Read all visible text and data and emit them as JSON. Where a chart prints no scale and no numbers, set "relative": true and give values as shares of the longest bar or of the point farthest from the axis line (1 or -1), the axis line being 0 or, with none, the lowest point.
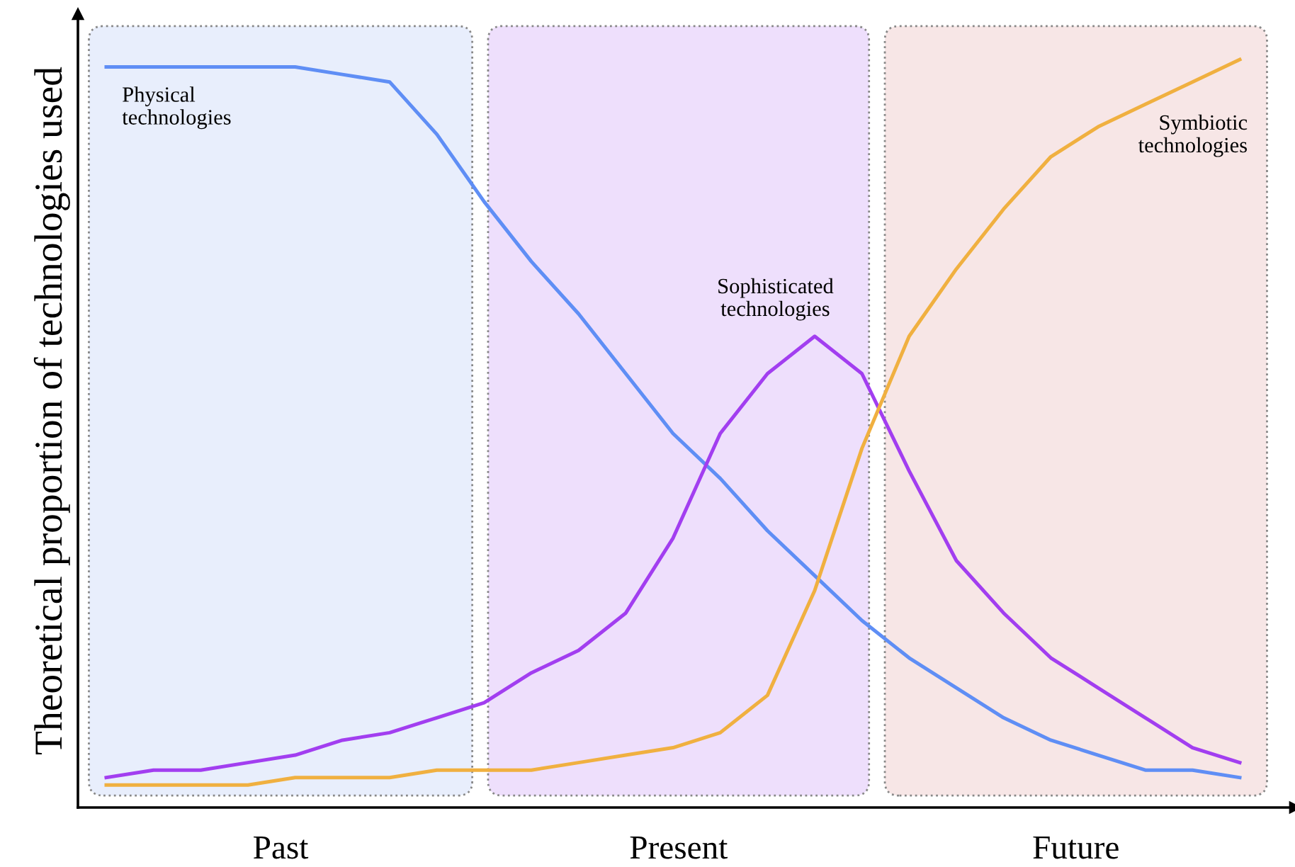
{
  "chart_data": {
    "type": "line",
    "relative": true,
    "ylabel": "Theoretical proportion of technologies used",
    "categories": [
      null,
      null,
      null,
      null,
      null,
      null,
      null,
      null,
      null,
      null,
      null,
      null,
      null,
      null,
      null,
      null,
      null,
      null,
      null,
      null,
      null,
      null,
      null,
      null,
      null
    ],
    "annotations": [
      "Past",
      "Present",
      "Future"
    ],
    "series": [
      {
        "name": "Physical\ntechnologies",
        "color": "#5f8ef5",
        "values": [
          0.99,
          0.99,
          0.99,
          0.99,
          0.99,
          0.98,
          0.97,
          0.9,
          0.81,
          0.73,
          0.66,
          0.58,
          0.5,
          0.44,
          0.37,
          0.31,
          0.25,
          0.2,
          0.16,
          0.12,
          0.09,
          0.07,
          0.05,
          0.05,
          0.04
        ]
      },
      {
        "name": "Sophisticated\ntechnologies",
        "color": "#a23ef0",
        "values": [
          0.04,
          0.05,
          0.05,
          0.06,
          0.07,
          0.09,
          0.1,
          0.12,
          0.14,
          0.18,
          0.21,
          0.26,
          0.36,
          0.5,
          0.58,
          0.63,
          0.58,
          0.45,
          0.33,
          0.26,
          0.2,
          0.16,
          0.12,
          0.08,
          0.06
        ]
      },
      {
        "name": "Symbiotic\ntechnologies",
        "color": "#f0b040",
        "values": [
          0.03,
          0.03,
          0.03,
          0.03,
          0.04,
          0.04,
          0.04,
          0.05,
          0.05,
          0.05,
          0.06,
          0.07,
          0.08,
          0.1,
          0.15,
          0.29,
          0.48,
          0.63,
          0.72,
          0.8,
          0.87,
          0.91,
          0.94,
          0.97,
          1.0
        ]
      }
    ]
  }
}
